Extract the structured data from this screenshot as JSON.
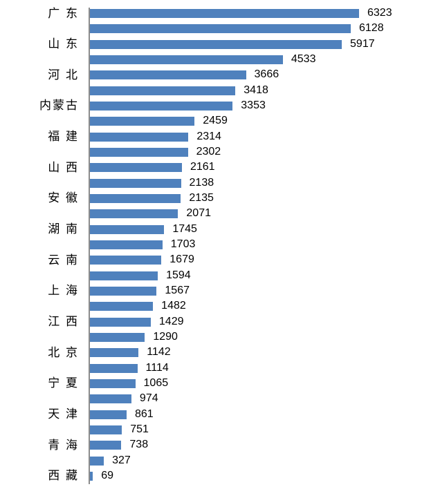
{
  "page": {
    "background_color": "#FFFFFF"
  },
  "chart_data": {
    "type": "bar",
    "orientation": "horizontal",
    "title": "",
    "xlabel": "",
    "ylabel": "",
    "sort_order": "descending",
    "bar_color": "#4F81BD",
    "axis_line_color": "#8C8C8C",
    "category_label_color": "#000000",
    "value_label_color": "#000000",
    "grid": false,
    "legend": false,
    "value_labels_position": "outside-end",
    "category_label_interval": 2,
    "max_value": 6323,
    "bars": [
      {
        "label": "广 东",
        "value": 6323
      },
      {
        "label": "",
        "value": 6128
      },
      {
        "label": "山 东",
        "value": 5917
      },
      {
        "label": "",
        "value": 4533
      },
      {
        "label": "河 北",
        "value": 3666
      },
      {
        "label": "",
        "value": 3418
      },
      {
        "label": "内蒙古",
        "value": 3353
      },
      {
        "label": "",
        "value": 2459
      },
      {
        "label": "福 建",
        "value": 2314
      },
      {
        "label": "",
        "value": 2302
      },
      {
        "label": "山 西",
        "value": 2161
      },
      {
        "label": "",
        "value": 2138
      },
      {
        "label": "安 徽",
        "value": 2135
      },
      {
        "label": "",
        "value": 2071
      },
      {
        "label": "湖 南",
        "value": 1745
      },
      {
        "label": "",
        "value": 1703
      },
      {
        "label": "云 南",
        "value": 1679
      },
      {
        "label": "",
        "value": 1594
      },
      {
        "label": "上 海",
        "value": 1567
      },
      {
        "label": "",
        "value": 1482
      },
      {
        "label": "江 西",
        "value": 1429
      },
      {
        "label": "",
        "value": 1290
      },
      {
        "label": "北 京",
        "value": 1142
      },
      {
        "label": "",
        "value": 1114
      },
      {
        "label": "宁 夏",
        "value": 1065
      },
      {
        "label": "",
        "value": 974
      },
      {
        "label": "天 津",
        "value": 861
      },
      {
        "label": "",
        "value": 751
      },
      {
        "label": "青 海",
        "value": 738
      },
      {
        "label": "",
        "value": 327
      },
      {
        "label": "西 藏",
        "value": 69
      }
    ]
  }
}
